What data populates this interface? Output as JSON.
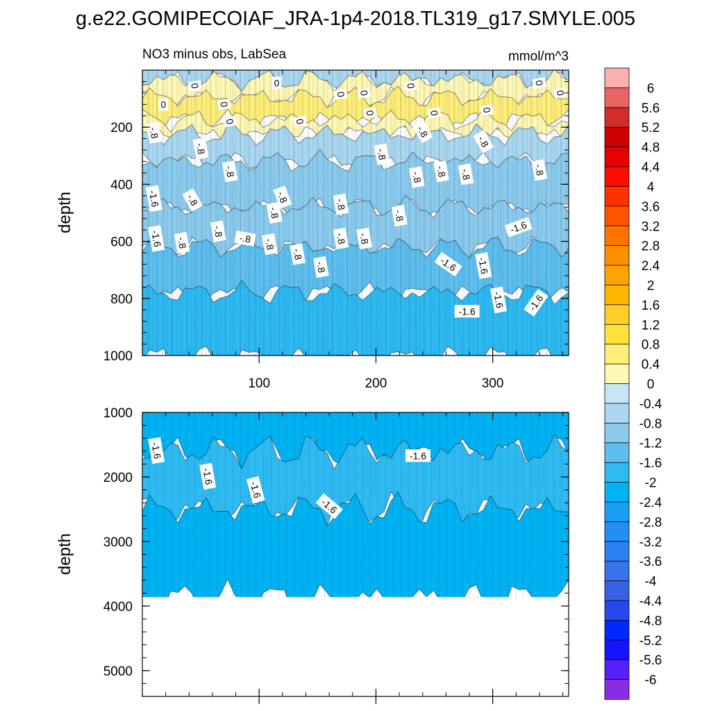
{
  "title": "g.e22.GOMIPECOIAF_JRA-1p4-2018.TL319_g17.SMYLE.005",
  "chart_data": {
    "type": "heatmap",
    "subtitle_left": "NO3 minus obs, LabSea",
    "subtitle_right": "mmol/m^3",
    "x_range": [
      0,
      365
    ],
    "top_panel": {
      "ylabel": "depth",
      "ylim": [
        1000,
        0
      ],
      "y_ticks": [
        "200",
        "400",
        "600",
        "800",
        "1000"
      ],
      "x_ticks": [
        "100",
        "200",
        "300"
      ],
      "bands": [
        {
          "from": 0,
          "to": 35,
          "value": -0.6
        },
        {
          "from": 35,
          "to": 95,
          "value": 0.2
        },
        {
          "from": 95,
          "to": 175,
          "value": 0.5
        },
        {
          "from": 175,
          "to": 225,
          "value": 0.1
        },
        {
          "from": 225,
          "to": 320,
          "value": -0.5
        },
        {
          "from": 320,
          "to": 480,
          "value": -0.9
        },
        {
          "from": 480,
          "to": 620,
          "value": -1.15
        },
        {
          "from": 620,
          "to": 780,
          "value": -1.45
        },
        {
          "from": 780,
          "to": 1000,
          "value": -1.8
        }
      ],
      "contour_labels": [
        {
          "text": "0",
          "x": 45,
          "y": 55,
          "rot": 80
        },
        {
          "text": "0",
          "x": 115,
          "y": 45,
          "rot": 0
        },
        {
          "text": "0",
          "x": 170,
          "y": 85,
          "rot": 80
        },
        {
          "text": "0",
          "x": 190,
          "y": 80,
          "rot": 80
        },
        {
          "text": "0",
          "x": 230,
          "y": 55,
          "rot": 80
        },
        {
          "text": "0",
          "x": 340,
          "y": 45,
          "rot": 80
        },
        {
          "text": "0",
          "x": 358,
          "y": 80,
          "rot": 80
        },
        {
          "text": "0",
          "x": 18,
          "y": 120,
          "rot": 0
        },
        {
          "text": "0",
          "x": 70,
          "y": 120,
          "rot": 80
        },
        {
          "text": "0",
          "x": 195,
          "y": 150,
          "rot": 80
        },
        {
          "text": "0",
          "x": 250,
          "y": 150,
          "rot": 80
        },
        {
          "text": "0",
          "x": 295,
          "y": 140,
          "rot": 80
        },
        {
          "text": "0",
          "x": 75,
          "y": 180,
          "rot": 80
        },
        {
          "text": "0",
          "x": 135,
          "y": 180,
          "rot": 80
        },
        {
          "text": "-.8",
          "x": 10,
          "y": 220,
          "rot": 80
        },
        {
          "text": "-.8",
          "x": 50,
          "y": 275,
          "rot": 80
        },
        {
          "text": "-.8",
          "x": 240,
          "y": 215,
          "rot": 60
        },
        {
          "text": "-.8",
          "x": 292,
          "y": 250,
          "rot": 60
        },
        {
          "text": "-.8",
          "x": 205,
          "y": 295,
          "rot": 80
        },
        {
          "text": "-.8",
          "x": 75,
          "y": 355,
          "rot": 80
        },
        {
          "text": "-.8",
          "x": 235,
          "y": 375,
          "rot": 80
        },
        {
          "text": "-.8",
          "x": 256,
          "y": 355,
          "rot": 80
        },
        {
          "text": "-.8",
          "x": 277,
          "y": 365,
          "rot": 80
        },
        {
          "text": "-.8",
          "x": 340,
          "y": 350,
          "rot": 80
        },
        {
          "text": "-.8",
          "x": 120,
          "y": 445,
          "rot": 70
        },
        {
          "text": "-1.6",
          "x": 10,
          "y": 450,
          "rot": 80
        },
        {
          "text": "-.8",
          "x": 43,
          "y": 455,
          "rot": 60
        },
        {
          "text": "-.8",
          "x": 170,
          "y": 470,
          "rot": 80
        },
        {
          "text": "-.8",
          "x": 113,
          "y": 500,
          "rot": 80
        },
        {
          "text": "-.8",
          "x": 220,
          "y": 510,
          "rot": 80
        },
        {
          "text": "-1.6",
          "x": 12,
          "y": 590,
          "rot": 80
        },
        {
          "text": "-.8",
          "x": 34,
          "y": 605,
          "rot": 80
        },
        {
          "text": "-.8",
          "x": 65,
          "y": 565,
          "rot": 80
        },
        {
          "text": "-.8",
          "x": 88,
          "y": 590,
          "rot": 10
        },
        {
          "text": "-.8",
          "x": 109,
          "y": 610,
          "rot": 80
        },
        {
          "text": "-.8",
          "x": 170,
          "y": 590,
          "rot": 80
        },
        {
          "text": "-.8",
          "x": 190,
          "y": 590,
          "rot": 80
        },
        {
          "text": "-.8",
          "x": 133,
          "y": 645,
          "rot": 80
        },
        {
          "text": "-.8",
          "x": 153,
          "y": 690,
          "rot": 80
        },
        {
          "text": "-1.6",
          "x": 322,
          "y": 550,
          "rot": -20
        },
        {
          "text": "-1.6",
          "x": 262,
          "y": 680,
          "rot": 35
        },
        {
          "text": "-1.6",
          "x": 292,
          "y": 685,
          "rot": 80
        },
        {
          "text": "-1.6",
          "x": 305,
          "y": 805,
          "rot": 80
        },
        {
          "text": "-1.6",
          "x": 278,
          "y": 845,
          "rot": 0
        },
        {
          "text": "-1.6",
          "x": 337,
          "y": 815,
          "rot": -55
        }
      ]
    },
    "bottom_panel": {
      "ylabel": "depth",
      "ylim": [
        5400,
        1000
      ],
      "y_ticks": [
        "1000",
        "2000",
        "3000",
        "4000",
        "5000"
      ],
      "data_bottom": 3860,
      "bands": [
        {
          "from": 1000,
          "to": 1600,
          "value": -2.2
        },
        {
          "from": 1600,
          "to": 2500,
          "value": -1.85
        },
        {
          "from": 2500,
          "to": 3860,
          "value": -2.2
        }
      ],
      "contour_labels": [
        {
          "text": "-1.6",
          "x": 12,
          "y": 1590,
          "rot": 80
        },
        {
          "text": "-1.6",
          "x": 56,
          "y": 1990,
          "rot": 80
        },
        {
          "text": "-1.6",
          "x": 97,
          "y": 2200,
          "rot": 75
        },
        {
          "text": "-1.6",
          "x": 160,
          "y": 2450,
          "rot": 40
        },
        {
          "text": "-1.6",
          "x": 236,
          "y": 1670,
          "rot": 0
        }
      ]
    },
    "colorbar": {
      "labels": [
        "6",
        "5.6",
        "5.2",
        "4.8",
        "4.4",
        "4",
        "3.6",
        "3.2",
        "2.8",
        "2.4",
        "2",
        "1.6",
        "1.2",
        "0.8",
        "0.4",
        "0",
        "-0.4",
        "-0.8",
        "-1.2",
        "-1.6",
        "-2",
        "-2.4",
        "-2.8",
        "-3.2",
        "-3.6",
        "-4",
        "-4.4",
        "-4.8",
        "-5.2",
        "-5.6",
        "-6"
      ],
      "colors": [
        "#fcb1b1",
        "#e96565",
        "#d42b2b",
        "#cd0000",
        "#e60000",
        "#ff0e00",
        "#ff3200",
        "#ff5300",
        "#ff7400",
        "#ff8e00",
        "#ffa300",
        "#ffb600",
        "#ffcd28",
        "#ffe13c",
        "#ffef78",
        "#fff8b4",
        "#c5e6f5",
        "#abd8f0",
        "#8ccbee",
        "#5ebfef",
        "#2ebaf1",
        "#00b2f2",
        "#18a0f5",
        "#238ef5",
        "#2a80f1",
        "#3873ec",
        "#3563e4",
        "#2748ee",
        "#0028ff",
        "#1614ff",
        "#5820f8",
        "#8a2ce4"
      ]
    }
  }
}
